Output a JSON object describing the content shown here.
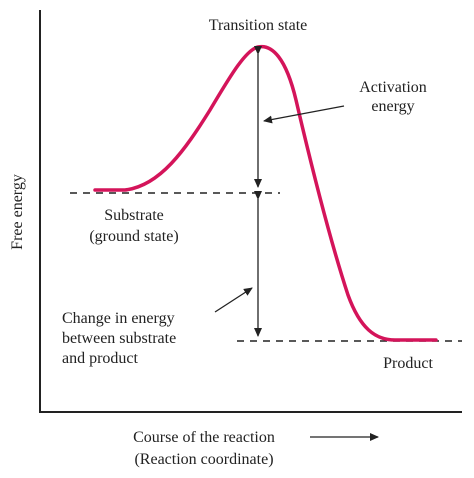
{
  "axes": {
    "y_label": "Free energy",
    "x_label_line1": "Course of the reaction",
    "x_label_line2": "(Reaction coordinate)"
  },
  "labels": {
    "transition_state": "Transition state",
    "activation_line1": "Activation",
    "activation_line2": "energy",
    "substrate_line1": "Substrate",
    "substrate_line2": "(ground state)",
    "change_line1": "Change in energy",
    "change_line2": "between substrate",
    "change_line3": "and product",
    "product": "Product"
  },
  "colors": {
    "curve": "#d4145a",
    "ink": "#222222"
  }
}
